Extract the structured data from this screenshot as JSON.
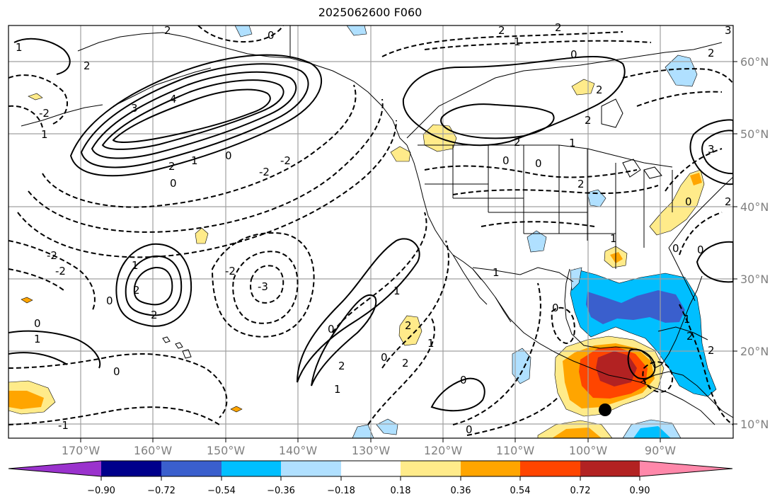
{
  "title": "2025062600 F060",
  "map": {
    "lon_labels": [
      "170°W",
      "160°W",
      "150°W",
      "140°W",
      "130°W",
      "120°W",
      "110°W",
      "100°W",
      "90°W"
    ],
    "lat_labels": [
      "60°N",
      "50°N",
      "40°N",
      "30°N",
      "20°N",
      "10°N"
    ],
    "contour_labels": [
      "0",
      "1",
      "2",
      "3",
      "4",
      "-1",
      "-2",
      "-3"
    ],
    "markers": [
      {
        "name": "storm-center",
        "lon": -98.2,
        "lat": 12.0
      }
    ]
  },
  "colorbar": {
    "ticks": [
      "−0.90",
      "−0.72",
      "−0.54",
      "−0.36",
      "−0.18",
      "0.18",
      "0.36",
      "0.54",
      "0.72",
      "0.90"
    ],
    "colors": [
      "#9a32cd",
      "#00008b",
      "#3a5fcd",
      "#00bfff",
      "#b0e0ff",
      "#ffffff",
      "#ffeb8a",
      "#ffa500",
      "#ff4500",
      "#b22222",
      "#ff88aa"
    ]
  }
}
